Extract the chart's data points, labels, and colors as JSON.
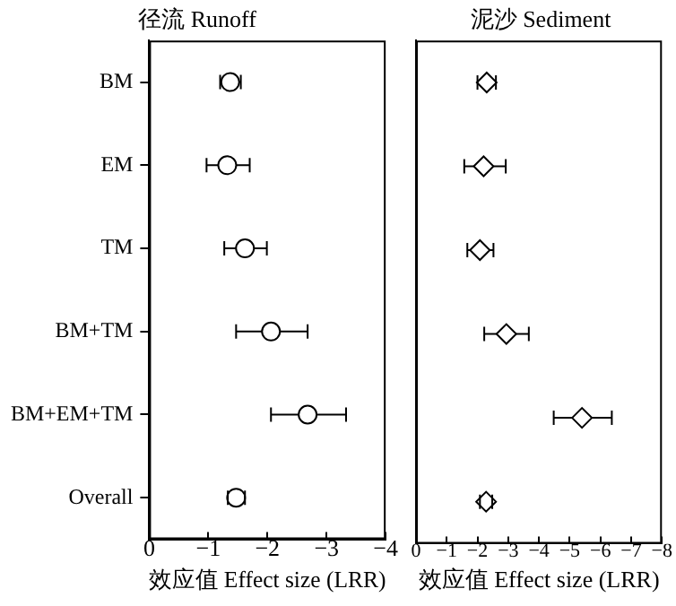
{
  "chart_data": [
    {
      "type": "scatter",
      "orientation": "horizontal",
      "title": "径流 Runoff",
      "xlabel": "效应值 Effect size (LRR)",
      "marker": "circle",
      "grid": false,
      "categories": [
        "BM",
        "EM",
        "TM",
        "BM+TM",
        "BM+EM+TM",
        "Overall"
      ],
      "series": [
        {
          "color": "#000000",
          "values": [
            -1.37,
            -1.32,
            -1.62,
            -2.06,
            -2.68,
            -1.47
          ],
          "errors": [
            [
              -1.55,
              -1.2
            ],
            [
              -1.7,
              -0.97
            ],
            [
              -1.99,
              -1.27
            ],
            [
              -2.68,
              -1.47
            ],
            [
              -3.33,
              -2.06
            ],
            [
              -1.62,
              -1.33
            ]
          ]
        }
      ],
      "xlim": [
        0,
        -4
      ],
      "xticks": [
        0,
        {
          "value": -1,
          "label": "−1"
        },
        {
          "value": -2,
          "label": "−2"
        },
        {
          "value": -3,
          "label": "−3"
        },
        {
          "value": -4,
          "label": "−4"
        }
      ]
    },
    {
      "type": "scatter",
      "orientation": "horizontal",
      "title": "泥沙 Sediment",
      "xlabel": "效应值 Effect size (LRR)",
      "marker": "diamond",
      "grid": false,
      "tick_labels": "x",
      "categories": [
        null,
        null,
        null,
        null,
        null,
        null
      ],
      "series": [
        {
          "color": "#000000",
          "values": [
            -2.3,
            -2.2,
            -2.08,
            -2.94,
            -5.4,
            -2.28
          ],
          "errors": [
            [
              -2.6,
              -2.0
            ],
            [
              -2.92,
              -1.57
            ],
            [
              -2.52,
              -1.67
            ],
            [
              -3.67,
              -2.22
            ],
            [
              -6.37,
              -4.48
            ],
            [
              -2.48,
              -2.08
            ]
          ]
        }
      ],
      "xlim": [
        0,
        -8
      ],
      "xticks": [
        0,
        {
          "value": -1,
          "label": "−1"
        },
        {
          "value": -2,
          "label": "−2"
        },
        {
          "value": -3,
          "label": "−3"
        },
        {
          "value": -4,
          "label": "−4"
        },
        {
          "value": -5,
          "label": "−5"
        },
        {
          "value": -6,
          "label": "−6"
        },
        {
          "value": -7,
          "label": "−7"
        },
        {
          "value": -8,
          "label": "−8"
        }
      ]
    }
  ]
}
